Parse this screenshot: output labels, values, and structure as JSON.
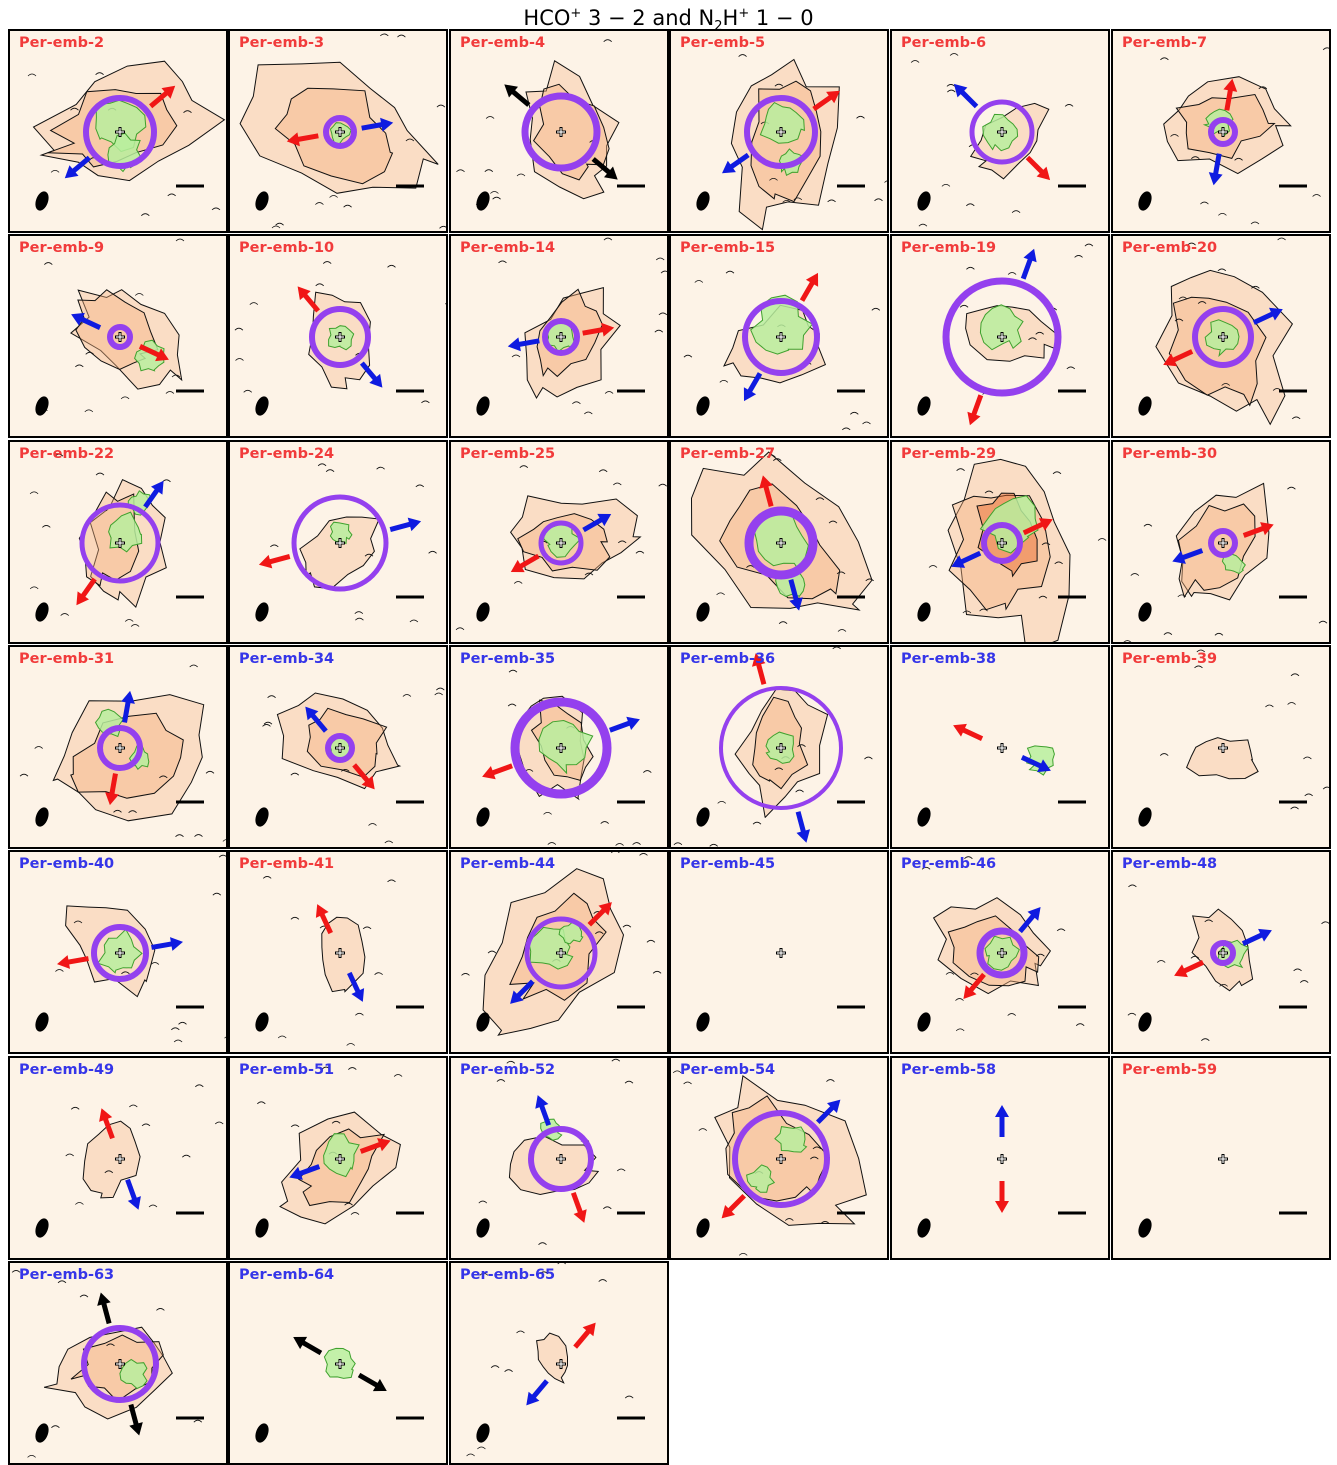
{
  "title": {
    "prefix": "HCO",
    "sup1": "+",
    "mid1": " 3 − 2 and N",
    "sub": "2",
    "mid2": "H",
    "sup2": "+",
    "suffix": " 1 − 0"
  },
  "colors": {
    "label_red": "#f13b3b",
    "label_blue": "#3535e8",
    "arrow_red": "#f01616",
    "arrow_blue": "#0f1be0",
    "arrow_black": "#000000",
    "circle": "#9440ee",
    "n2hp_fill": "#b8ee9e",
    "n2hp_edge": "#3fa12e",
    "hcop_map": [
      "#fdf3e7",
      "#f6b07e",
      "#e8662a",
      "#c24a12"
    ],
    "panel_bg": "#fdf3e7"
  },
  "chart_data": {
    "type": "heatmap",
    "description_keys": [
      "panels"
    ],
    "grid": {
      "columns": 6,
      "rows": 7
    },
    "panels": [
      {
        "name": "Per-emb-2",
        "label_color": "red",
        "circle": 0.17,
        "circle_w": 6,
        "arrows": [
          {
            "angle": 40,
            "color": "red"
          },
          {
            "angle": 220,
            "color": "blue"
          }
        ],
        "green": [
          [
            0,
            0.05,
            0.12
          ],
          [
            0.02,
            -0.1,
            0.08
          ]
        ],
        "hco": 0.8
      },
      {
        "name": "Per-emb-3",
        "label_color": "red",
        "circle": 0.07,
        "circle_w": 6,
        "arrows": [
          {
            "angle": 10,
            "color": "blue"
          },
          {
            "angle": 190,
            "color": "red"
          }
        ],
        "green": [
          [
            0,
            0,
            0.05
          ]
        ],
        "hco": 0.85
      },
      {
        "name": "Per-emb-4",
        "label_color": "red",
        "circle": 0.18,
        "circle_w": 7,
        "arrows": [
          {
            "angle": 140,
            "color": "black"
          },
          {
            "angle": 320,
            "color": "black"
          }
        ],
        "green": [],
        "hco": 0.55
      },
      {
        "name": "Per-emb-5",
        "label_color": "red",
        "circle": 0.17,
        "circle_w": 6,
        "arrows": [
          {
            "angle": 35,
            "color": "red"
          },
          {
            "angle": 215,
            "color": "blue"
          }
        ],
        "green": [
          [
            0,
            0.05,
            0.1
          ],
          [
            0.05,
            -0.15,
            0.06
          ]
        ],
        "hco": 0.75
      },
      {
        "name": "Per-emb-6",
        "label_color": "red",
        "circle": 0.15,
        "circle_w": 5,
        "arrows": [
          {
            "angle": 135,
            "color": "blue"
          },
          {
            "angle": 315,
            "color": "red"
          }
        ],
        "green": [
          [
            0,
            0,
            0.08
          ]
        ],
        "hco": 0.3
      },
      {
        "name": "Per-emb-7",
        "label_color": "red",
        "circle": 0.06,
        "circle_w": 6,
        "arrows": [
          {
            "angle": 80,
            "color": "red"
          },
          {
            "angle": 260,
            "color": "blue"
          }
        ],
        "green": [
          [
            -0.02,
            0.05,
            0.06
          ]
        ],
        "hco": 0.55
      },
      {
        "name": "Per-emb-9",
        "label_color": "red",
        "circle": 0.05,
        "circle_w": 6,
        "arrows": [
          {
            "angle": 155,
            "color": "blue"
          },
          {
            "angle": 335,
            "color": "red"
          }
        ],
        "green": [
          [
            0.15,
            -0.1,
            0.07
          ]
        ],
        "hco": 0.5
      },
      {
        "name": "Per-emb-10",
        "label_color": "red",
        "circle": 0.14,
        "circle_w": 6,
        "arrows": [
          {
            "angle": 130,
            "color": "red"
          },
          {
            "angle": 310,
            "color": "blue"
          }
        ],
        "green": [
          [
            0,
            0,
            0.06
          ]
        ],
        "hco": 0.4
      },
      {
        "name": "Per-emb-14",
        "label_color": "red",
        "circle": 0.08,
        "circle_w": 6,
        "arrows": [
          {
            "angle": 10,
            "color": "red"
          },
          {
            "angle": 190,
            "color": "blue"
          }
        ],
        "green": [
          [
            0,
            0,
            0.07
          ]
        ],
        "hco": 0.5
      },
      {
        "name": "Per-emb-15",
        "label_color": "red",
        "circle": 0.18,
        "circle_w": 6,
        "arrows": [
          {
            "angle": 60,
            "color": "red"
          },
          {
            "angle": 240,
            "color": "blue"
          }
        ],
        "green": [
          [
            0,
            0.05,
            0.13
          ]
        ],
        "hco": 0.4
      },
      {
        "name": "Per-emb-19",
        "label_color": "red",
        "circle": 0.28,
        "circle_w": 7,
        "arrows": [
          {
            "angle": 70,
            "color": "blue"
          },
          {
            "angle": 250,
            "color": "red"
          }
        ],
        "green": [
          [
            0,
            0.05,
            0.1
          ]
        ],
        "hco": 0.35
      },
      {
        "name": "Per-emb-20",
        "label_color": "red",
        "circle": 0.14,
        "circle_w": 6,
        "arrows": [
          {
            "angle": 25,
            "color": "blue"
          },
          {
            "angle": 205,
            "color": "red"
          }
        ],
        "green": [
          [
            0,
            0,
            0.08
          ]
        ],
        "hco": 0.8
      },
      {
        "name": "Per-emb-22",
        "label_color": "red",
        "circle": 0.19,
        "circle_w": 5,
        "arrows": [
          {
            "angle": 55,
            "color": "blue"
          },
          {
            "angle": 235,
            "color": "red"
          }
        ],
        "green": [
          [
            0.02,
            0.05,
            0.09
          ],
          [
            0.1,
            0.2,
            0.05
          ]
        ],
        "hco": 0.5
      },
      {
        "name": "Per-emb-24",
        "label_color": "red",
        "circle": 0.23,
        "circle_w": 5,
        "arrows": [
          {
            "angle": 15,
            "color": "blue"
          },
          {
            "angle": 195,
            "color": "red"
          }
        ],
        "green": [
          [
            0,
            0.05,
            0.05
          ]
        ],
        "hco": 0.3
      },
      {
        "name": "Per-emb-25",
        "label_color": "red",
        "circle": 0.1,
        "circle_w": 5,
        "arrows": [
          {
            "angle": 30,
            "color": "blue"
          },
          {
            "angle": 210,
            "color": "red"
          }
        ],
        "green": [
          [
            0,
            0.02,
            0.08
          ]
        ],
        "hco": 0.55
      },
      {
        "name": "Per-emb-27",
        "label_color": "red",
        "circle": 0.16,
        "circle_w": 9,
        "arrows": [
          {
            "angle": 105,
            "color": "red"
          },
          {
            "angle": 285,
            "color": "blue"
          }
        ],
        "green": [
          [
            0,
            0,
            0.13
          ],
          [
            0.05,
            -0.2,
            0.07
          ]
        ],
        "hco": 0.85
      },
      {
        "name": "Per-emb-29",
        "label_color": "red",
        "circle": 0.09,
        "circle_w": 6,
        "arrows": [
          {
            "angle": 25,
            "color": "red"
          },
          {
            "angle": 205,
            "color": "blue"
          }
        ],
        "green": [
          [
            0.05,
            0.1,
            0.13
          ]
        ],
        "hco": 0.9
      },
      {
        "name": "Per-emb-30",
        "label_color": "red",
        "circle": 0.06,
        "circle_w": 6,
        "arrows": [
          {
            "angle": 20,
            "color": "red"
          },
          {
            "angle": 200,
            "color": "blue"
          }
        ],
        "green": [
          [
            0.05,
            -0.1,
            0.05
          ]
        ],
        "hco": 0.6
      },
      {
        "name": "Per-emb-31",
        "label_color": "red",
        "circle": 0.1,
        "circle_w": 6,
        "arrows": [
          {
            "angle": 80,
            "color": "blue"
          },
          {
            "angle": 260,
            "color": "red"
          }
        ],
        "green": [
          [
            -0.05,
            0.12,
            0.06
          ],
          [
            0.1,
            -0.05,
            0.05
          ]
        ],
        "hco": 0.8
      },
      {
        "name": "Per-emb-34",
        "label_color": "blue",
        "circle": 0.06,
        "circle_w": 6,
        "arrows": [
          {
            "angle": 130,
            "color": "blue"
          },
          {
            "angle": 310,
            "color": "red"
          }
        ],
        "green": [
          [
            0,
            0,
            0.05
          ]
        ],
        "hco": 0.55
      },
      {
        "name": "Per-emb-35",
        "label_color": "blue",
        "circle": 0.23,
        "circle_w": 9,
        "arrows": [
          {
            "angle": 20,
            "color": "blue"
          },
          {
            "angle": 200,
            "color": "red"
          }
        ],
        "green": [
          [
            0.02,
            0.02,
            0.12
          ]
        ],
        "hco": 0.45
      },
      {
        "name": "Per-emb-36",
        "label_color": "blue",
        "circle": 0.3,
        "circle_w": 4,
        "arrows": [
          {
            "angle": 105,
            "color": "red"
          },
          {
            "angle": 285,
            "color": "blue"
          }
        ],
        "green": [
          [
            0,
            0,
            0.07
          ]
        ],
        "hco": 0.5
      },
      {
        "name": "Per-emb-38",
        "label_color": "blue",
        "circle": 0,
        "circle_w": 0,
        "arrows": [
          {
            "angle": 155,
            "color": "red"
          },
          {
            "angle": 335,
            "color": "blue"
          }
        ],
        "green": [
          [
            0.2,
            -0.05,
            0.07
          ]
        ],
        "hco": 0.0
      },
      {
        "name": "Per-emb-39",
        "label_color": "red",
        "circle": 0,
        "circle_w": 0,
        "arrows": [],
        "green": [],
        "hco": 0.2
      },
      {
        "name": "Per-emb-40",
        "label_color": "blue",
        "circle": 0.13,
        "circle_w": 6,
        "arrows": [
          {
            "angle": 10,
            "color": "blue"
          },
          {
            "angle": 190,
            "color": "red"
          }
        ],
        "green": [
          [
            0,
            0,
            0.1
          ]
        ],
        "hco": 0.4
      },
      {
        "name": "Per-emb-41",
        "label_color": "red",
        "circle": 0,
        "circle_w": 0,
        "arrows": [
          {
            "angle": 115,
            "color": "red"
          },
          {
            "angle": 295,
            "color": "blue"
          }
        ],
        "green": [],
        "hco": 0.25
      },
      {
        "name": "Per-emb-44",
        "label_color": "blue",
        "circle": 0.17,
        "circle_w": 5,
        "arrows": [
          {
            "angle": 45,
            "color": "red"
          },
          {
            "angle": 225,
            "color": "blue"
          }
        ],
        "green": [
          [
            -0.05,
            0.02,
            0.1
          ],
          [
            0.05,
            0.1,
            0.05
          ]
        ],
        "hco": 0.75
      },
      {
        "name": "Per-emb-45",
        "label_color": "blue",
        "circle": 0,
        "circle_w": 0,
        "arrows": [],
        "green": [],
        "hco": 0.0
      },
      {
        "name": "Per-emb-46",
        "label_color": "blue",
        "circle": 0.11,
        "circle_w": 7,
        "arrows": [
          {
            "angle": 50,
            "color": "blue"
          },
          {
            "angle": 230,
            "color": "red"
          }
        ],
        "green": [
          [
            0,
            0,
            0.08
          ]
        ],
        "hco": 0.5
      },
      {
        "name": "Per-emb-48",
        "label_color": "blue",
        "circle": 0.05,
        "circle_w": 6,
        "arrows": [
          {
            "angle": 25,
            "color": "blue"
          },
          {
            "angle": 205,
            "color": "red"
          }
        ],
        "green": [
          [
            0.05,
            0,
            0.07
          ]
        ],
        "hco": 0.3
      },
      {
        "name": "Per-emb-49",
        "label_color": "blue",
        "circle": 0,
        "circle_w": 0,
        "arrows": [
          {
            "angle": 110,
            "color": "red"
          },
          {
            "angle": 290,
            "color": "blue"
          }
        ],
        "green": [],
        "hco": 0.25
      },
      {
        "name": "Per-emb-51",
        "label_color": "blue",
        "circle": 0,
        "circle_w": 0,
        "arrows": [
          {
            "angle": 20,
            "color": "red"
          },
          {
            "angle": 200,
            "color": "blue"
          }
        ],
        "green": [
          [
            0,
            0.02,
            0.09
          ]
        ],
        "hco": 0.55
      },
      {
        "name": "Per-emb-52",
        "label_color": "blue",
        "circle": 0.15,
        "circle_w": 6,
        "arrows": [
          {
            "angle": 110,
            "color": "blue"
          },
          {
            "angle": 290,
            "color": "red"
          }
        ],
        "green": [
          [
            -0.05,
            0.15,
            0.05
          ]
        ],
        "hco": 0.3
      },
      {
        "name": "Per-emb-54",
        "label_color": "blue",
        "circle": 0.23,
        "circle_w": 6,
        "arrows": [
          {
            "angle": 45,
            "color": "blue"
          },
          {
            "angle": 225,
            "color": "red"
          }
        ],
        "green": [
          [
            0.05,
            0.1,
            0.07
          ],
          [
            -0.1,
            -0.1,
            0.06
          ]
        ],
        "hco": 0.8
      },
      {
        "name": "Per-emb-58",
        "label_color": "blue",
        "circle": 0,
        "circle_w": 0,
        "arrows": [
          {
            "angle": 90,
            "color": "blue"
          },
          {
            "angle": 270,
            "color": "red"
          }
        ],
        "green": [],
        "hco": 0.0
      },
      {
        "name": "Per-emb-59",
        "label_color": "red",
        "circle": 0,
        "circle_w": 0,
        "arrows": [],
        "green": [],
        "hco": 0.0
      },
      {
        "name": "Per-emb-63",
        "label_color": "blue",
        "circle": 0.18,
        "circle_w": 6,
        "arrows": [
          {
            "angle": 105,
            "color": "black"
          },
          {
            "angle": 285,
            "color": "black"
          }
        ],
        "green": [
          [
            0.07,
            -0.05,
            0.06
          ]
        ],
        "hco": 0.5
      },
      {
        "name": "Per-emb-64",
        "label_color": "blue",
        "circle": 0,
        "circle_w": 0,
        "arrows": [
          {
            "angle": 150,
            "color": "black"
          },
          {
            "angle": 330,
            "color": "black"
          }
        ],
        "green": [
          [
            0,
            0,
            0.07
          ]
        ],
        "hco": 0.0
      },
      {
        "name": "Per-emb-65",
        "label_color": "blue",
        "circle": 0,
        "circle_w": 0,
        "arrows": [
          {
            "angle": 50,
            "color": "red"
          },
          {
            "angle": 230,
            "color": "blue"
          }
        ],
        "green": [],
        "hco": 0.1
      }
    ]
  }
}
